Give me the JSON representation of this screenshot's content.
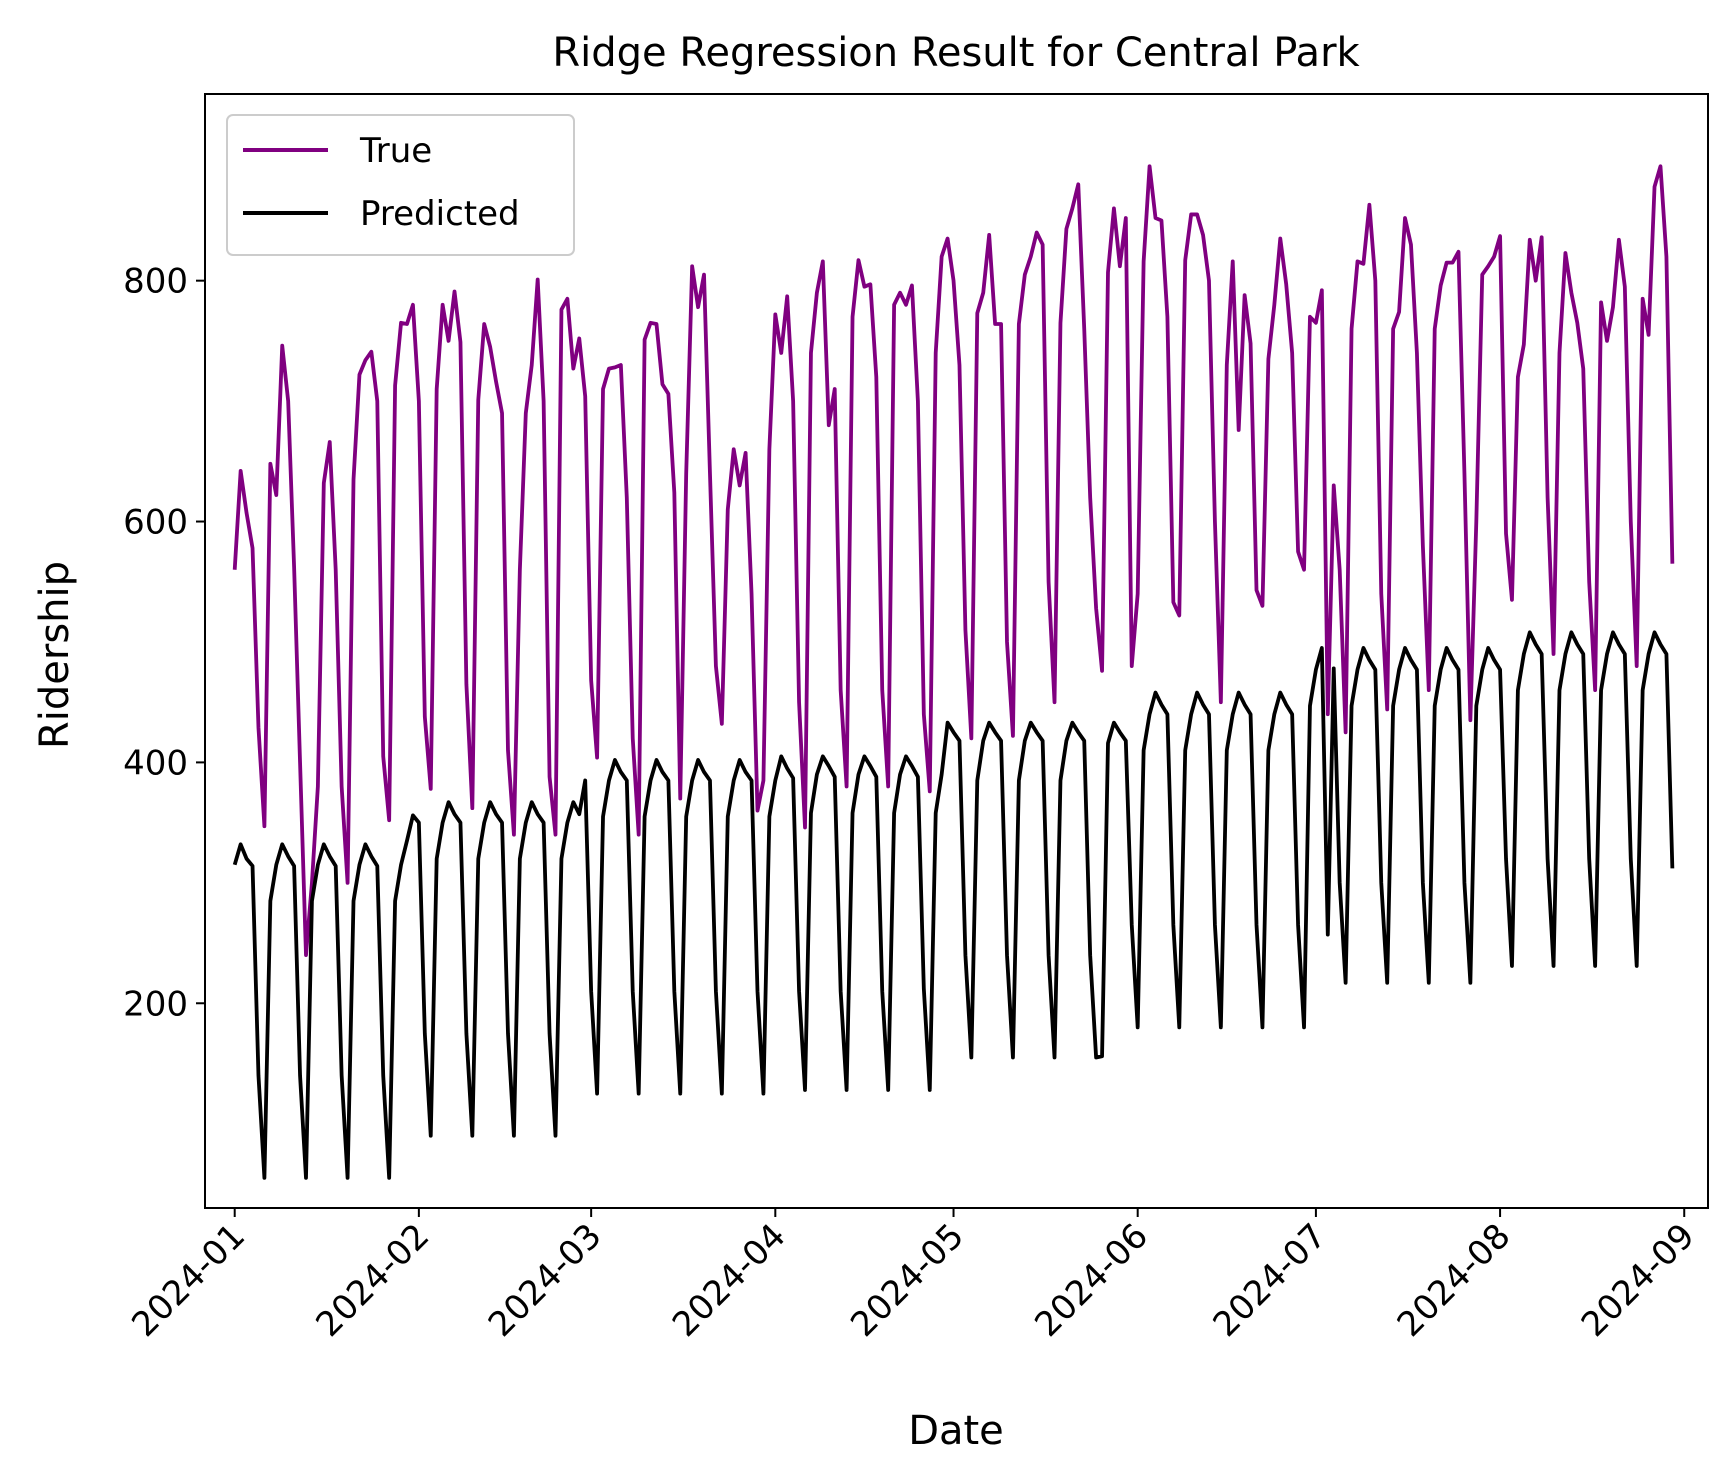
{
  "chart_data": {
    "type": "line",
    "title": "Ridge Regression Result for Central Park",
    "xlabel": "Date",
    "ylabel": "Ridership",
    "x_range": [
      "2023-12-27",
      "2024-09-05"
    ],
    "ylim": [
      30,
      955
    ],
    "y_ticks": [
      200,
      400,
      600,
      800
    ],
    "x_ticks": [
      "2024-01-01",
      "2024-02-01",
      "2024-03-01",
      "2024-04-01",
      "2024-05-01",
      "2024-06-01",
      "2024-07-01",
      "2024-08-01",
      "2024-09-01"
    ],
    "x_tick_labels": [
      "2024-01",
      "2024-02",
      "2024-03",
      "2024-04",
      "2024-05",
      "2024-06",
      "2024-07",
      "2024-08",
      "2024-09"
    ],
    "legend": {
      "position": "upper-left",
      "entries": [
        "True",
        "Predicted"
      ]
    },
    "grid": false,
    "start_date": "2024-01-01",
    "series": [
      {
        "name": "True",
        "color": "#800080",
        "values": [
          560,
          642,
          607,
          578,
          429,
          347,
          648,
          622,
          746,
          700,
          562,
          400,
          240,
          300,
          380,
          632,
          666,
          560,
          380,
          300,
          635,
          722,
          734,
          741,
          700,
          405,
          352,
          713,
          765,
          764,
          780,
          700,
          438,
          378,
          710,
          780,
          750,
          791,
          749,
          465,
          362,
          701,
          764,
          745,
          716,
          690,
          410,
          340,
          560,
          690,
          730,
          801,
          700,
          388,
          340,
          776,
          785,
          727,
          752,
          704,
          468,
          404,
          710,
          727,
          728,
          730,
          620,
          420,
          340,
          751,
          765,
          764,
          714,
          706,
          624,
          370,
          640,
          812,
          778,
          805,
          640,
          480,
          432,
          610,
          660,
          630,
          657,
          540,
          360,
          385,
          660,
          772,
          740,
          787,
          700,
          450,
          346,
          740,
          790,
          816,
          680,
          710,
          460,
          380,
          770,
          817,
          795,
          797,
          720,
          460,
          380,
          780,
          790,
          780,
          796,
          700,
          440,
          376,
          740,
          820,
          835,
          800,
          730,
          510,
          420,
          773,
          790,
          838,
          764,
          764,
          500,
          422,
          764,
          805,
          820,
          840,
          830,
          550,
          450,
          765,
          843,
          860,
          880,
          760,
          620,
          528,
          476,
          807,
          860,
          812,
          852,
          480,
          540,
          816,
          895,
          852,
          850,
          770,
          533,
          522,
          817,
          855,
          855,
          838,
          800,
          600,
          450,
          730,
          816,
          676,
          788,
          748,
          543,
          530,
          735,
          780,
          835,
          797,
          740,
          575,
          560,
          770,
          765,
          792,
          440,
          630,
          560,
          425,
          760,
          816,
          814,
          863,
          800,
          540,
          444,
          760,
          774,
          852,
          830,
          740,
          580,
          460,
          760,
          796,
          815,
          815,
          824,
          640,
          435,
          600,
          805,
          812,
          820,
          837,
          590,
          535,
          720,
          747,
          834,
          800,
          836,
          620,
          490,
          740,
          823,
          790,
          765,
          727,
          550,
          460,
          782,
          750,
          778,
          834,
          795,
          600,
          480,
          785,
          755,
          878,
          895,
          820,
          565
        ]
      },
      {
        "name": "Predicted",
        "color": "#000000",
        "values": [
          315,
          332,
          320,
          314,
          140,
          55,
          285,
          315,
          332,
          322,
          314,
          140,
          55,
          285,
          315,
          332,
          322,
          314,
          140,
          55,
          285,
          315,
          332,
          322,
          314,
          140,
          55,
          285,
          315,
          335,
          356,
          350,
          175,
          90,
          320,
          350,
          367,
          357,
          350,
          175,
          90,
          320,
          350,
          367,
          357,
          350,
          175,
          90,
          320,
          350,
          367,
          357,
          350,
          175,
          90,
          320,
          350,
          367,
          357,
          385,
          210,
          125,
          355,
          385,
          402,
          392,
          385,
          210,
          125,
          355,
          385,
          402,
          392,
          385,
          210,
          125,
          355,
          385,
          402,
          392,
          385,
          210,
          125,
          355,
          385,
          402,
          392,
          385,
          210,
          125,
          355,
          385,
          405,
          395,
          387,
          210,
          128,
          358,
          390,
          405,
          397,
          388,
          210,
          128,
          358,
          390,
          405,
          397,
          388,
          210,
          128,
          358,
          390,
          405,
          397,
          388,
          212,
          128,
          358,
          390,
          433,
          425,
          418,
          240,
          155,
          385,
          418,
          433,
          425,
          418,
          240,
          155,
          385,
          418,
          433,
          425,
          418,
          240,
          155,
          385,
          418,
          433,
          425,
          418,
          240,
          155,
          156,
          416,
          433,
          425,
          418,
          265,
          180,
          410,
          440,
          458,
          448,
          440,
          265,
          180,
          410,
          440,
          458,
          448,
          440,
          265,
          180,
          410,
          440,
          458,
          448,
          440,
          265,
          180,
          410,
          440,
          458,
          448,
          440,
          265,
          180,
          447,
          477,
          495,
          257,
          478,
          300,
          217,
          447,
          477,
          495,
          485,
          477,
          300,
          217,
          447,
          477,
          495,
          485,
          477,
          300,
          217,
          447,
          477,
          495,
          485,
          477,
          300,
          217,
          447,
          477,
          495,
          485,
          477,
          320,
          231,
          460,
          490,
          508,
          498,
          490,
          320,
          231,
          460,
          490,
          508,
          498,
          490,
          320,
          231,
          460,
          490,
          508,
          498,
          490,
          320,
          231,
          460,
          490,
          508,
          498,
          490,
          312
        ]
      }
    ]
  }
}
